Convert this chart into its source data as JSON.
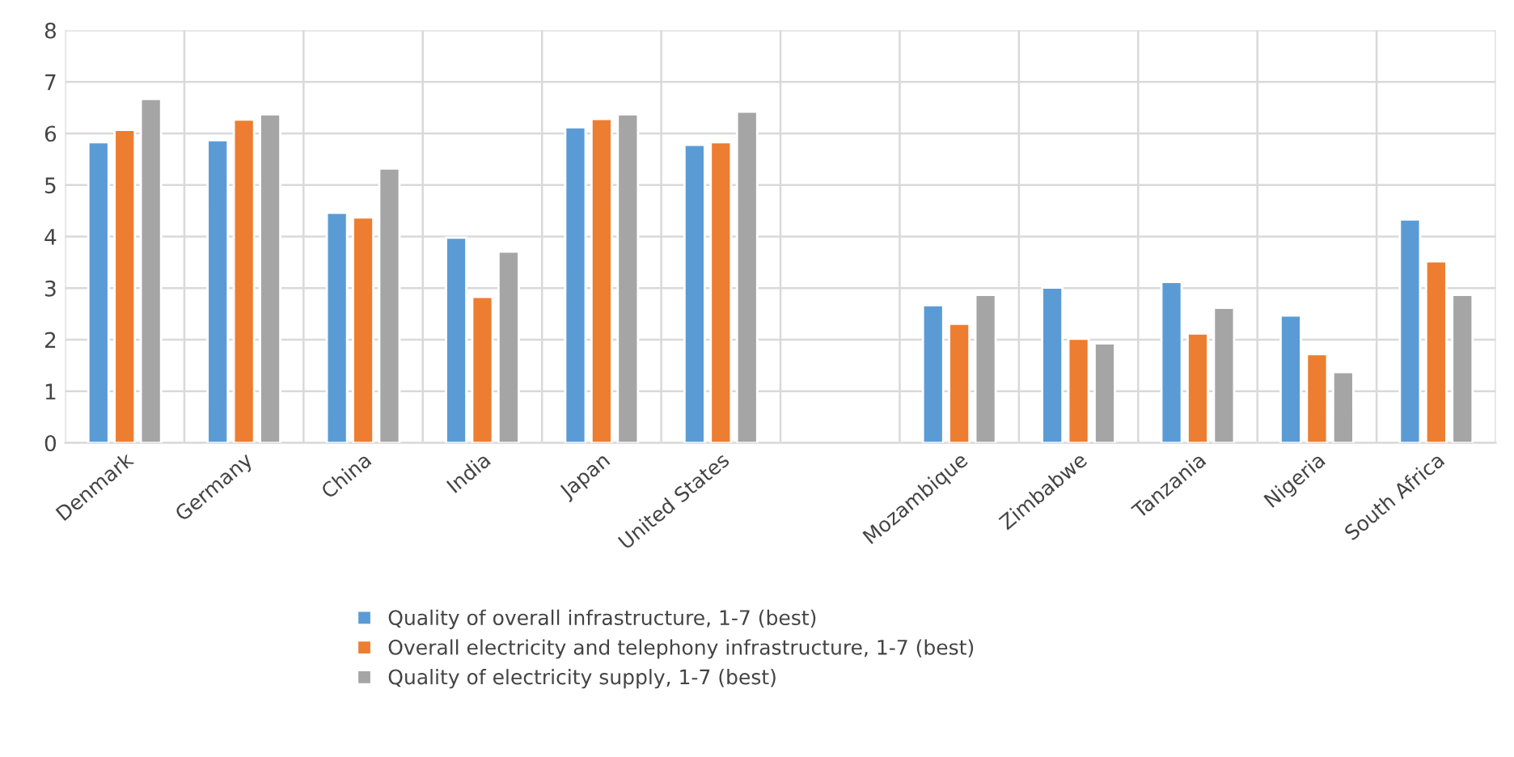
{
  "chart_data": {
    "type": "bar",
    "categories": [
      "Denmark",
      "Germany",
      "China",
      "India",
      "Japan",
      "United States",
      null,
      "Mozambique",
      "Zimbabwe",
      "Tanzania",
      "Nigeria",
      "South Africa"
    ],
    "series": [
      {
        "name": "Quality of overall infrastructure, 1-7 (best)",
        "color": "#5b9bd5",
        "values": [
          5.83,
          5.87,
          4.46,
          3.98,
          6.12,
          5.78,
          null,
          2.67,
          3.01,
          3.12,
          2.47,
          4.33
        ]
      },
      {
        "name": "Overall electricity and telephony infrastructure, 1-7 (best)",
        "color": "#ed7d31",
        "values": [
          6.07,
          6.27,
          4.37,
          2.83,
          6.28,
          5.83,
          null,
          2.31,
          2.02,
          2.12,
          1.72,
          3.52
        ]
      },
      {
        "name": "Quality of electricity supply, 1-7 (best)",
        "color": "#a5a5a5",
        "values": [
          6.67,
          6.37,
          5.32,
          3.71,
          6.37,
          6.42,
          null,
          2.87,
          1.93,
          2.62,
          1.37,
          2.87
        ]
      }
    ],
    "ylim": [
      0,
      8
    ],
    "yticks": [
      0,
      1,
      2,
      3,
      4,
      5,
      6,
      7,
      8
    ],
    "grid": true,
    "legend": "bottom"
  }
}
